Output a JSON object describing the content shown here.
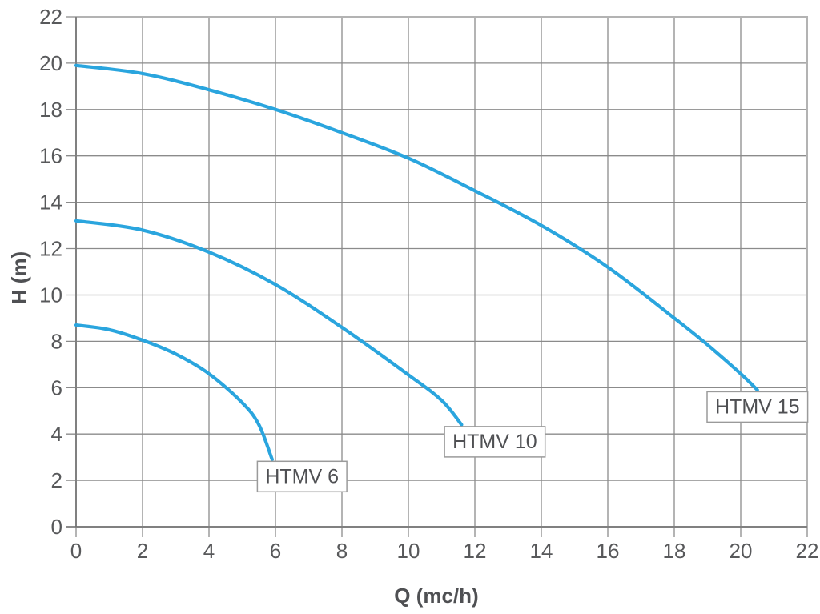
{
  "page": {
    "background": "#ffffff"
  },
  "chart_data": {
    "type": "line",
    "title": "",
    "xlabel": "Q (mc/h)",
    "ylabel": "H (m)",
    "xlim": [
      0,
      22
    ],
    "ylim": [
      0,
      22
    ],
    "xticks": [
      0,
      2,
      4,
      6,
      8,
      10,
      12,
      14,
      16,
      18,
      20,
      22
    ],
    "yticks": [
      0,
      2,
      4,
      6,
      8,
      10,
      12,
      14,
      16,
      18,
      20,
      22
    ],
    "grid": true,
    "legend": "inline-label-boxes",
    "line_color": "#2aa5de",
    "series": [
      {
        "name": "HTMV 15",
        "points": [
          [
            0,
            19.9
          ],
          [
            2,
            19.55
          ],
          [
            4,
            18.85
          ],
          [
            6,
            18.0
          ],
          [
            8,
            17.0
          ],
          [
            10,
            15.9
          ],
          [
            12,
            14.5
          ],
          [
            14,
            13.0
          ],
          [
            16,
            11.2
          ],
          [
            18,
            9.0
          ],
          [
            19,
            7.85
          ],
          [
            20,
            6.6
          ],
          [
            20.5,
            5.9
          ]
        ],
        "label_box": {
          "text": "HTMV 15",
          "cx": 20.5,
          "cy": 5.2
        }
      },
      {
        "name": "HTMV 10",
        "points": [
          [
            0,
            13.2
          ],
          [
            2,
            12.8
          ],
          [
            4,
            11.85
          ],
          [
            6,
            10.45
          ],
          [
            8,
            8.6
          ],
          [
            10,
            6.55
          ],
          [
            11,
            5.45
          ],
          [
            11.6,
            4.4
          ]
        ],
        "label_box": {
          "text": "HTMV 10",
          "cx": 12.6,
          "cy": 3.7
        }
      },
      {
        "name": "HTMV 6",
        "points": [
          [
            0,
            8.7
          ],
          [
            1,
            8.5
          ],
          [
            2,
            8.05
          ],
          [
            3,
            7.45
          ],
          [
            4,
            6.6
          ],
          [
            5,
            5.35
          ],
          [
            5.5,
            4.4
          ],
          [
            5.9,
            2.9
          ]
        ],
        "label_box": {
          "text": "HTMV 6",
          "cx": 6.8,
          "cy": 2.2
        }
      }
    ],
    "style": {
      "grid_color": "#8b8b8b",
      "border_color": "#b3b3b3",
      "axis_color": "#6f6f6f",
      "tick_text_color": "#58595b",
      "axis_title_color": "#4f5053",
      "label_box_border": "#9a9a9a",
      "label_box_bg": "#ffffff",
      "label_text_color": "#4f5053"
    }
  }
}
